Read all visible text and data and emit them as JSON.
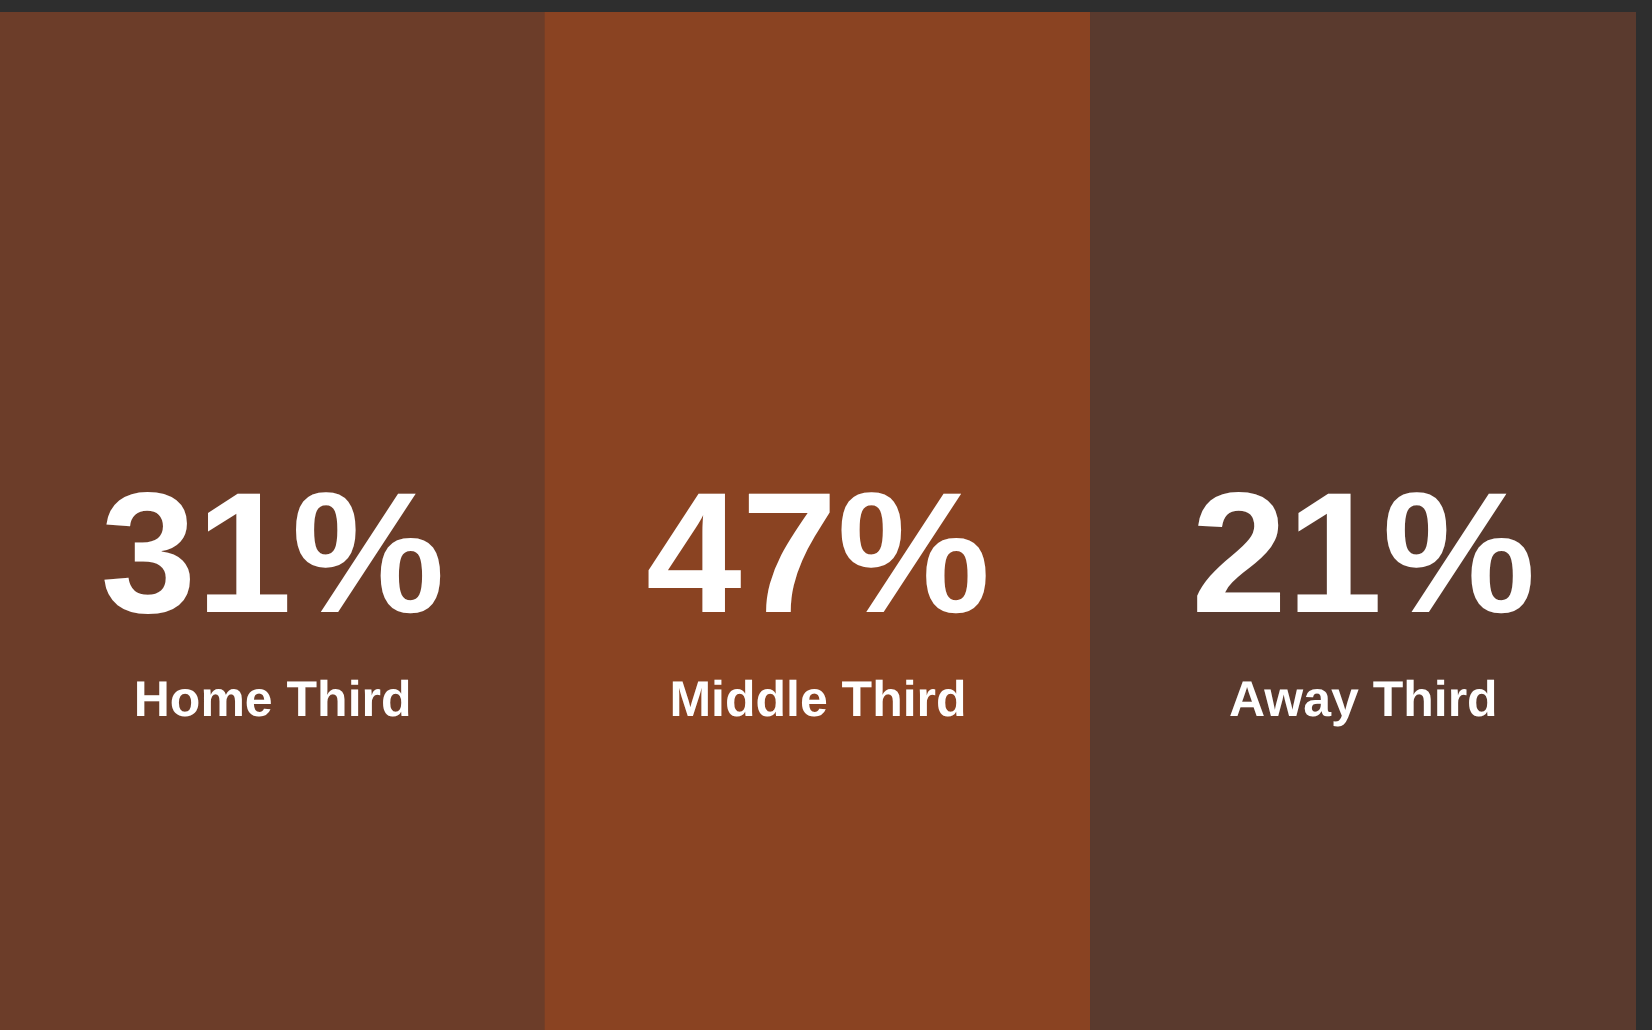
{
  "chart_data": {
    "type": "other",
    "categories": [
      "Home Third",
      "Middle Third",
      "Away Third"
    ],
    "values": [
      31,
      47,
      21
    ],
    "value_labels": [
      "31%",
      "47%",
      "21%"
    ]
  }
}
